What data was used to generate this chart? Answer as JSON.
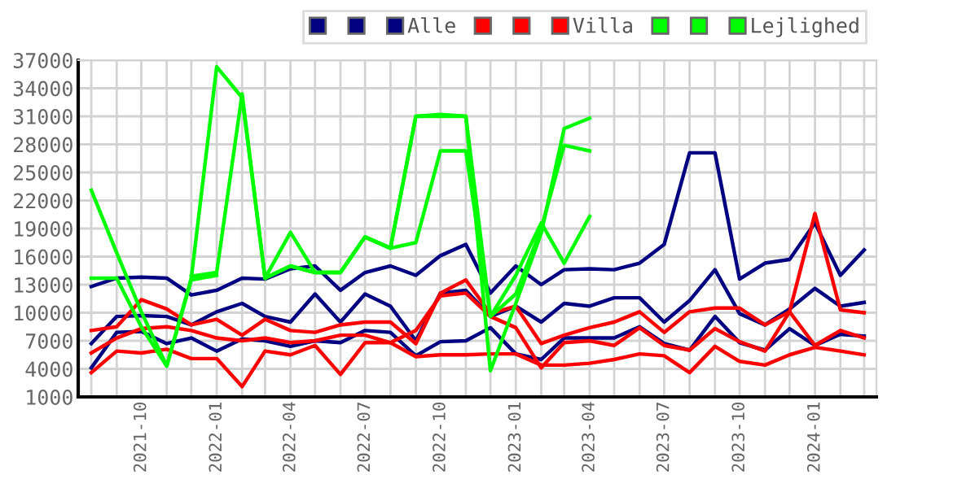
{
  "chart_data": {
    "type": "line",
    "x": [
      "2021-08",
      "2021-09",
      "2021-10",
      "2021-11",
      "2021-12",
      "2022-01",
      "2022-02",
      "2022-03",
      "2022-04",
      "2022-05",
      "2022-06",
      "2022-07",
      "2022-08",
      "2022-09",
      "2022-10",
      "2022-11",
      "2022-12",
      "2023-01",
      "2023-02",
      "2023-03",
      "2023-04",
      "2023-05",
      "2023-06",
      "2023-07",
      "2023-08",
      "2023-09",
      "2023-10",
      "2023-11",
      "2023-12",
      "2024-01",
      "2024-02",
      "2024-03"
    ],
    "series": [
      {
        "color": "#000080",
        "values": [
          12800,
          13700,
          13800,
          13700,
          11900,
          12400,
          13700,
          13600,
          14700,
          15000,
          12400,
          14300,
          15000,
          14000,
          16100,
          17300,
          12100,
          15000,
          13000,
          14600,
          14700,
          14600,
          15300,
          17300,
          27100,
          27100,
          13600,
          15300,
          15700,
          19600,
          14000,
          16700
        ]
      },
      {
        "color": "#000080",
        "values": [
          6700,
          9600,
          9700,
          9600,
          8700,
          10100,
          11000,
          9600,
          9000,
          12000,
          9000,
          12000,
          10700,
          7000,
          12100,
          12400,
          9600,
          10700,
          9000,
          11000,
          10700,
          11600,
          11600,
          9000,
          11300,
          14600,
          9900,
          8700,
          10400,
          12600,
          10700,
          11100
        ]
      },
      {
        "name": "Alle",
        "color": "#000080",
        "values": [
          4100,
          7900,
          8000,
          6700,
          7300,
          5900,
          7200,
          7000,
          6400,
          7000,
          6800,
          8100,
          7900,
          5400,
          6900,
          7000,
          8400,
          5600,
          5000,
          7300,
          7300,
          7300,
          8500,
          6700,
          6000,
          9600,
          6800,
          6000,
          8300,
          6500,
          7700,
          7500
        ]
      },
      {
        "color": "#ff0000",
        "values": [
          8100,
          8500,
          11400,
          10400,
          8700,
          9300,
          7600,
          9300,
          8100,
          7900,
          8700,
          9000,
          9000,
          6700,
          12100,
          13500,
          9900,
          10700,
          6700,
          7600,
          8400,
          9000,
          10100,
          7900,
          10100,
          10500,
          10500,
          8700,
          10100,
          20600,
          10300,
          10000
        ]
      },
      {
        "color": "#ff0000",
        "values": [
          5700,
          7300,
          8300,
          8500,
          8100,
          7300,
          7000,
          7300,
          6800,
          7000,
          7600,
          7600,
          6800,
          8100,
          11800,
          12100,
          9600,
          8400,
          4100,
          6800,
          7000,
          6500,
          8400,
          6500,
          6000,
          8300,
          6900,
          5900,
          10100,
          6500,
          8100,
          7300
        ]
      },
      {
        "name": "Villa",
        "color": "#ff0000",
        "values": [
          3600,
          5900,
          5700,
          6100,
          5100,
          5100,
          2100,
          5900,
          5500,
          6500,
          3400,
          6800,
          6800,
          5300,
          5500,
          5500,
          5600,
          5600,
          4400,
          4400,
          4600,
          5000,
          5600,
          5400,
          3600,
          6400,
          4800,
          4400,
          5500,
          6300,
          5900,
          5500
        ]
      },
      {
        "color": "#00ff00",
        "values": [
          23100,
          16400,
          10100,
          4300,
          13500,
          14000,
          null,
          13700,
          18600,
          14300,
          14300,
          18100,
          16900,
          17500,
          27300,
          27300,
          9600,
          14000,
          19600,
          15300,
          20300,
          null,
          null,
          null,
          null,
          null,
          null,
          null,
          null,
          null,
          null,
          null
        ]
      },
      {
        "color": "#00ff00",
        "values": [
          13700,
          13700,
          8500,
          4300,
          13700,
          36300,
          33000,
          13700,
          15000,
          14300,
          14300,
          18100,
          16900,
          31000,
          31200,
          31000,
          3800,
          11000,
          18500,
          29700,
          30800,
          null,
          null,
          null,
          null,
          null,
          null,
          null,
          null,
          null,
          null,
          null
        ]
      },
      {
        "name": "Lejlighed",
        "color": "#00ff00",
        "values": [
          null,
          null,
          null,
          null,
          13900,
          14300,
          33400,
          13700,
          15000,
          14300,
          14300,
          18100,
          16900,
          31000,
          31000,
          31000,
          9600,
          12000,
          19000,
          27900,
          27300,
          null,
          null,
          null,
          null,
          null,
          null,
          null,
          null,
          null,
          null,
          null
        ]
      }
    ],
    "xlim": [
      "2021-07-16",
      "2024-03-16"
    ],
    "xticks": [
      {
        "value": "2021-08",
        "label": null
      },
      {
        "value": "2021-09",
        "label": null
      },
      {
        "value": "2021-10",
        "label": "2021-10"
      },
      {
        "value": "2021-11",
        "label": null
      },
      {
        "value": "2021-12",
        "label": null
      },
      {
        "value": "2022-01",
        "label": "2022-01"
      },
      {
        "value": "2022-02",
        "label": null
      },
      {
        "value": "2022-03",
        "label": null
      },
      {
        "value": "2022-04",
        "label": "2022-04"
      },
      {
        "value": "2022-05",
        "label": null
      },
      {
        "value": "2022-06",
        "label": null
      },
      {
        "value": "2022-07",
        "label": "2022-07"
      },
      {
        "value": "2022-08",
        "label": null
      },
      {
        "value": "2022-09",
        "label": null
      },
      {
        "value": "2022-10",
        "label": "2022-10"
      },
      {
        "value": "2022-11",
        "label": null
      },
      {
        "value": "2022-12",
        "label": null
      },
      {
        "value": "2023-01",
        "label": "2023-01"
      },
      {
        "value": "2023-02",
        "label": null
      },
      {
        "value": "2023-03",
        "label": null
      },
      {
        "value": "2023-04",
        "label": "2023-04"
      },
      {
        "value": "2023-05",
        "label": null
      },
      {
        "value": "2023-06",
        "label": null
      },
      {
        "value": "2023-07",
        "label": "2023-07"
      },
      {
        "value": "2023-08",
        "label": null
      },
      {
        "value": "2023-09",
        "label": null
      },
      {
        "value": "2023-10",
        "label": "2023-10"
      },
      {
        "value": "2023-11",
        "label": null
      },
      {
        "value": "2023-12",
        "label": null
      },
      {
        "value": "2024-01",
        "label": "2024-01"
      },
      {
        "value": "2024-02",
        "label": null
      },
      {
        "value": "2024-03",
        "label": null
      }
    ],
    "ylim": [
      1000,
      37000
    ],
    "yticks": [
      1000,
      4000,
      7000,
      10000,
      13000,
      16000,
      19000,
      22000,
      25000,
      28000,
      31000,
      34000,
      37000
    ],
    "grid": true,
    "legend": "top right",
    "marker": "none",
    "line_style": "solid"
  }
}
